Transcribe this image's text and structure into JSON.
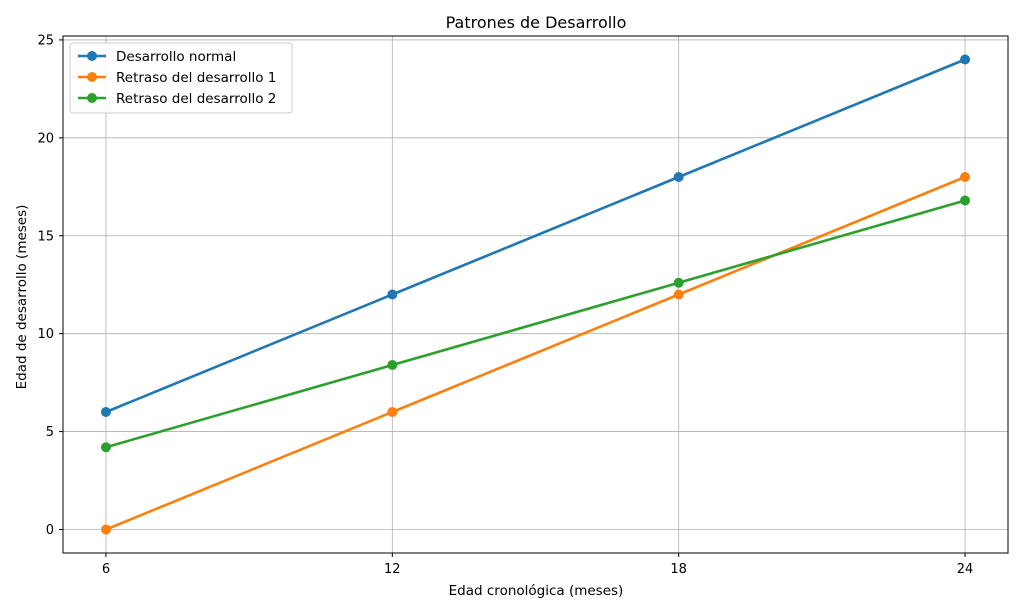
{
  "chart_data": {
    "type": "line",
    "title": "Patrones de Desarrollo",
    "xlabel": "Edad cronológica (meses)",
    "ylabel": "Edad de desarrollo (meses)",
    "x": [
      6,
      12,
      18,
      24
    ],
    "xticks": [
      "6",
      "12",
      "18",
      "24"
    ],
    "yticks": [
      0,
      5,
      10,
      15,
      20,
      25
    ],
    "xlim": [
      5.1,
      24.9
    ],
    "ylim": [
      -1.2,
      25.2
    ],
    "grid": true,
    "legend_position": "top-left",
    "series": [
      {
        "name": "Desarrollo normal",
        "color": "#1f77b4",
        "values": [
          6,
          12,
          18,
          24
        ]
      },
      {
        "name": "Retraso del desarrollo 1",
        "color": "#ff7f0e",
        "values": [
          0,
          6,
          12,
          18
        ]
      },
      {
        "name": "Retraso del desarrollo 2",
        "color": "#2ca02c",
        "values": [
          4.2,
          8.4,
          12.6,
          16.8
        ]
      }
    ]
  }
}
